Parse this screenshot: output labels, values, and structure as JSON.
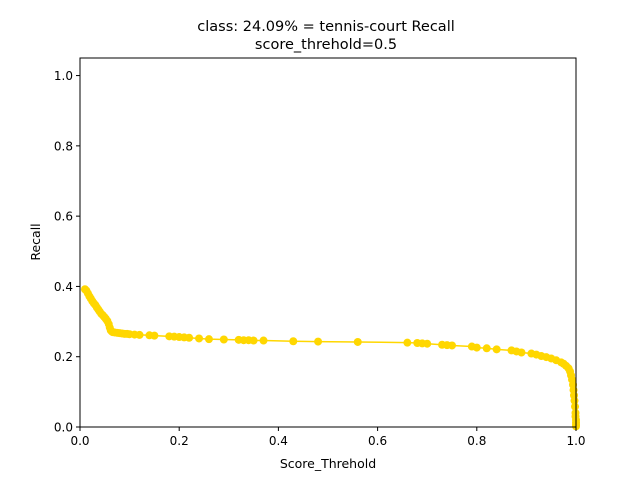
{
  "chart_data": {
    "type": "line",
    "title_line1": "class: 24.09% = tennis-court Recall",
    "title_line2": "score_threhold=0.5",
    "xlabel": "Score_Threhold",
    "ylabel": "Recall",
    "xlim": [
      0.0,
      1.0
    ],
    "ylim": [
      0.0,
      1.05
    ],
    "xticks": [
      0.0,
      0.2,
      0.4,
      0.6,
      0.8,
      1.0
    ],
    "xtick_labels": [
      "0.0",
      "0.2",
      "0.4",
      "0.6",
      "0.8",
      "1.0"
    ],
    "yticks": [
      0.0,
      0.2,
      0.4,
      0.6,
      0.8,
      1.0
    ],
    "ytick_labels": [
      "0.0",
      "0.2",
      "0.4",
      "0.6",
      "0.8",
      "1.0"
    ],
    "grid": false,
    "legend": "none",
    "series": [
      {
        "color": "#ffd700",
        "marker": "circle",
        "x": [
          0.01,
          0.013,
          0.016,
          0.019,
          0.022,
          0.025,
          0.028,
          0.031,
          0.034,
          0.037,
          0.04,
          0.043,
          0.046,
          0.049,
          0.052,
          0.055,
          0.058,
          0.06,
          0.062,
          0.064,
          0.066,
          0.07,
          0.075,
          0.08,
          0.085,
          0.09,
          0.095,
          0.1,
          0.11,
          0.12,
          0.14,
          0.15,
          0.18,
          0.19,
          0.2,
          0.21,
          0.22,
          0.24,
          0.26,
          0.29,
          0.32,
          0.33,
          0.34,
          0.35,
          0.37,
          0.43,
          0.48,
          0.56,
          0.66,
          0.68,
          0.69,
          0.7,
          0.73,
          0.74,
          0.75,
          0.79,
          0.8,
          0.82,
          0.84,
          0.87,
          0.88,
          0.89,
          0.91,
          0.92,
          0.93,
          0.94,
          0.95,
          0.96,
          0.97,
          0.975,
          0.98,
          0.985,
          0.988,
          0.99,
          0.992,
          0.994,
          0.995,
          0.996,
          0.997,
          0.998,
          0.999,
          0.999,
          1.0,
          1.0,
          1.0,
          1.0
        ],
        "y": [
          0.392,
          0.388,
          0.38,
          0.372,
          0.365,
          0.358,
          0.352,
          0.347,
          0.34,
          0.334,
          0.328,
          0.322,
          0.318,
          0.313,
          0.308,
          0.302,
          0.293,
          0.283,
          0.275,
          0.272,
          0.27,
          0.269,
          0.268,
          0.267,
          0.266,
          0.265,
          0.265,
          0.264,
          0.263,
          0.262,
          0.261,
          0.26,
          0.258,
          0.257,
          0.256,
          0.255,
          0.254,
          0.252,
          0.25,
          0.249,
          0.248,
          0.247,
          0.247,
          0.246,
          0.246,
          0.244,
          0.243,
          0.242,
          0.24,
          0.239,
          0.238,
          0.237,
          0.234,
          0.233,
          0.232,
          0.229,
          0.226,
          0.224,
          0.221,
          0.218,
          0.215,
          0.212,
          0.209,
          0.206,
          0.202,
          0.199,
          0.195,
          0.19,
          0.184,
          0.18,
          0.174,
          0.167,
          0.158,
          0.147,
          0.135,
          0.12,
          0.105,
          0.09,
          0.075,
          0.058,
          0.04,
          0.03,
          0.02,
          0.012,
          0.006,
          0.002
        ]
      }
    ]
  }
}
